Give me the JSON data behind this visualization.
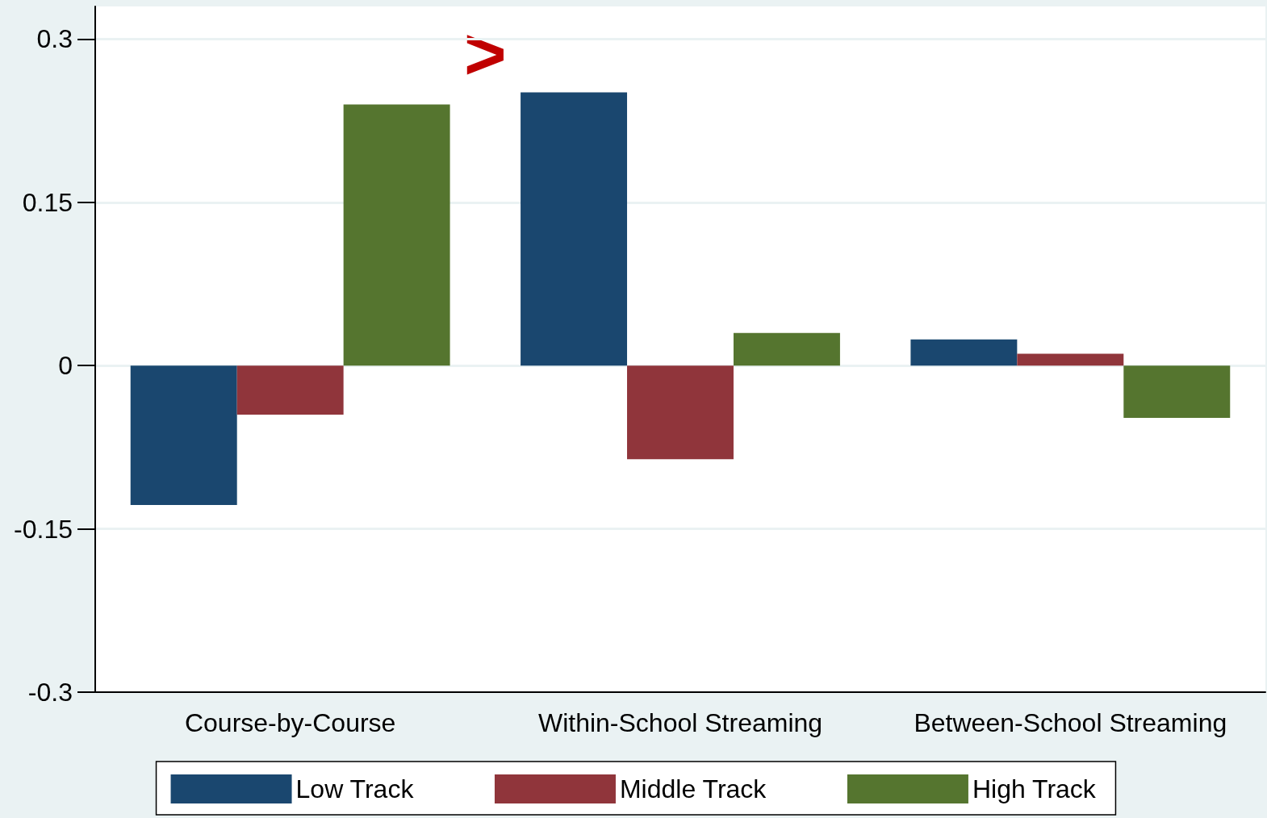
{
  "chart_data": {
    "type": "bar",
    "categories": [
      "Course-by-Course",
      "Within-School Streaming",
      "Between-School Streaming"
    ],
    "series": [
      {
        "name": "Low Track",
        "color": "#1a476f",
        "values": [
          -0.128,
          0.251,
          0.024
        ]
      },
      {
        "name": "Middle Track",
        "color": "#90353b",
        "values": [
          -0.045,
          -0.086,
          0.011
        ]
      },
      {
        "name": "High Track",
        "color": "#55752f",
        "values": [
          0.24,
          0.03,
          -0.048
        ]
      }
    ],
    "ylim": [
      -0.3,
      0.33
    ],
    "yticks": [
      -0.3,
      -0.15,
      0,
      0.15,
      0.3
    ],
    "grid": "y",
    "legend": "bottom",
    "annotations": [
      ">"
    ]
  }
}
